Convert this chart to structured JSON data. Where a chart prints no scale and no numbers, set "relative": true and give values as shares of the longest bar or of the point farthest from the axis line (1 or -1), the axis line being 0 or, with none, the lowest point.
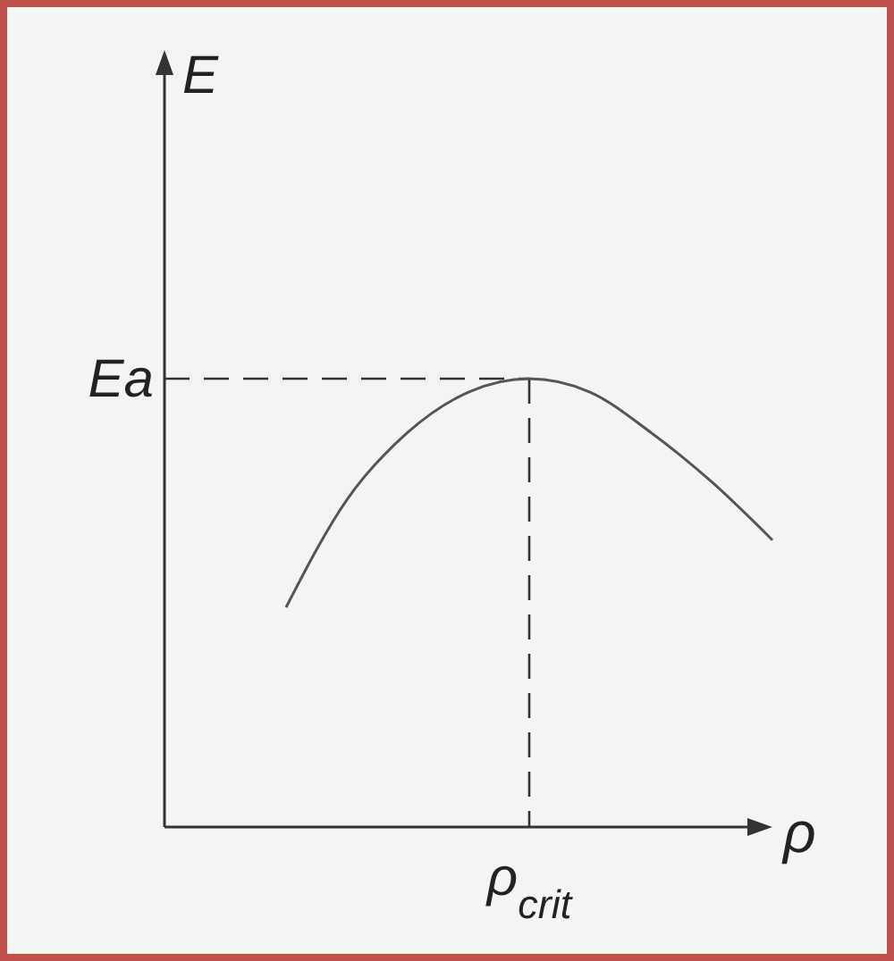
{
  "chart_data": {
    "type": "line",
    "xlabel": "ρ",
    "relative": true,
    "categories": [
      null,
      null,
      null,
      null,
      null,
      null,
      null,
      null,
      null
    ],
    "series": [
      {
        "color": "#555555",
        "values": [
          0.49,
          0.73,
          0.88,
          0.97,
          1.0,
          0.97,
          0.88,
          0.77,
          0.64
        ]
      }
    ],
    "ref_lines": [
      {
        "axis": "y",
        "value": 1.0,
        "label": "Ea",
        "line_style": "dashed"
      }
    ],
    "annotations": [
      "E",
      "ρ$_{crit}$"
    ]
  }
}
